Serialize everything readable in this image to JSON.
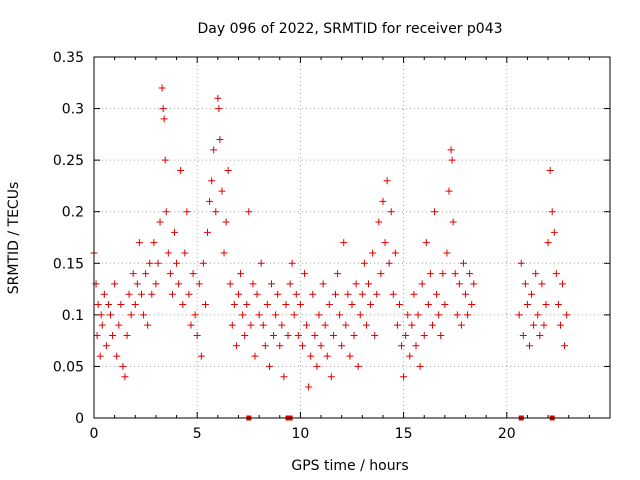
{
  "chart_data": {
    "type": "scatter",
    "title": "Day 096 of 2022, SRMTID for receiver p043",
    "xlabel": "GPS time / hours",
    "ylabel": "SRMTID / TECUs",
    "xlim": [
      0,
      25
    ],
    "ylim": [
      0,
      0.35
    ],
    "grid": true,
    "xticks": [
      0,
      5,
      10,
      15,
      20
    ],
    "xtick_labels": [
      "0",
      "5",
      "10",
      "15",
      "20"
    ],
    "yticks": [
      0,
      0.05,
      0.1,
      0.15,
      0.2,
      0.25,
      0.3,
      0.35
    ],
    "ytick_labels": [
      "0",
      "0.05",
      "0.1",
      "0.15",
      "0.2",
      "0.25",
      "0.3",
      "0.35"
    ],
    "marker": "+",
    "color": "#e00000",
    "series": [
      {
        "name": "SRMTID",
        "points": [
          [
            0.0,
            0.16
          ],
          [
            0.1,
            0.13
          ],
          [
            0.15,
            0.08
          ],
          [
            0.2,
            0.11
          ],
          [
            0.3,
            0.06
          ],
          [
            0.35,
            0.1
          ],
          [
            0.4,
            0.09
          ],
          [
            0.5,
            0.12
          ],
          [
            0.6,
            0.07
          ],
          [
            0.7,
            0.11
          ],
          [
            0.8,
            0.1
          ],
          [
            0.9,
            0.08
          ],
          [
            1.0,
            0.13
          ],
          [
            1.1,
            0.06
          ],
          [
            1.2,
            0.09
          ],
          [
            1.3,
            0.11
          ],
          [
            1.4,
            0.05
          ],
          [
            1.5,
            0.04
          ],
          [
            1.6,
            0.08
          ],
          [
            1.7,
            0.12
          ],
          [
            1.8,
            0.1
          ],
          [
            1.9,
            0.14
          ],
          [
            2.0,
            0.11
          ],
          [
            2.1,
            0.13
          ],
          [
            2.2,
            0.17
          ],
          [
            2.3,
            0.12
          ],
          [
            2.4,
            0.1
          ],
          [
            2.5,
            0.14
          ],
          [
            2.6,
            0.09
          ],
          [
            2.7,
            0.15
          ],
          [
            2.8,
            0.12
          ],
          [
            2.9,
            0.17
          ],
          [
            3.0,
            0.13
          ],
          [
            3.1,
            0.15
          ],
          [
            3.2,
            0.19
          ],
          [
            3.3,
            0.32
          ],
          [
            3.35,
            0.3
          ],
          [
            3.4,
            0.29
          ],
          [
            3.45,
            0.25
          ],
          [
            3.5,
            0.2
          ],
          [
            3.6,
            0.16
          ],
          [
            3.7,
            0.14
          ],
          [
            3.8,
            0.12
          ],
          [
            3.9,
            0.18
          ],
          [
            4.0,
            0.15
          ],
          [
            4.1,
            0.13
          ],
          [
            4.2,
            0.24
          ],
          [
            4.3,
            0.11
          ],
          [
            4.4,
            0.16
          ],
          [
            4.5,
            0.2
          ],
          [
            4.6,
            0.12
          ],
          [
            4.7,
            0.09
          ],
          [
            4.8,
            0.14
          ],
          [
            4.9,
            0.1
          ],
          [
            5.0,
            0.08
          ],
          [
            5.1,
            0.13
          ],
          [
            5.2,
            0.06
          ],
          [
            5.3,
            0.15
          ],
          [
            5.4,
            0.11
          ],
          [
            5.5,
            0.18
          ],
          [
            5.6,
            0.21
          ],
          [
            5.7,
            0.23
          ],
          [
            5.8,
            0.26
          ],
          [
            5.9,
            0.2
          ],
          [
            6.0,
            0.31
          ],
          [
            6.05,
            0.3
          ],
          [
            6.1,
            0.27
          ],
          [
            6.2,
            0.22
          ],
          [
            6.3,
            0.16
          ],
          [
            6.4,
            0.19
          ],
          [
            6.5,
            0.24
          ],
          [
            6.6,
            0.13
          ],
          [
            6.7,
            0.09
          ],
          [
            6.8,
            0.11
          ],
          [
            6.9,
            0.07
          ],
          [
            7.0,
            0.12
          ],
          [
            7.1,
            0.14
          ],
          [
            7.2,
            0.1
          ],
          [
            7.3,
            0.08
          ],
          [
            7.4,
            0.11
          ],
          [
            7.5,
            0.2
          ],
          [
            7.6,
            0.09
          ],
          [
            7.7,
            0.13
          ],
          [
            7.8,
            0.06
          ],
          [
            7.9,
            0.12
          ],
          [
            8.0,
            0.1
          ],
          [
            8.1,
            0.15
          ],
          [
            8.2,
            0.09
          ],
          [
            8.3,
            0.07
          ],
          [
            8.4,
            0.11
          ],
          [
            8.5,
            0.05
          ],
          [
            8.6,
            0.13
          ],
          [
            8.7,
            0.08
          ],
          [
            8.8,
            0.1
          ],
          [
            8.9,
            0.12
          ],
          [
            9.0,
            0.07
          ],
          [
            9.1,
            0.09
          ],
          [
            9.2,
            0.04
          ],
          [
            9.3,
            0.11
          ],
          [
            9.4,
            0.08
          ],
          [
            9.5,
            0.13
          ],
          [
            9.6,
            0.15
          ],
          [
            9.7,
            0.1
          ],
          [
            9.8,
            0.12
          ],
          [
            9.9,
            0.08
          ],
          [
            10.0,
            0.11
          ],
          [
            10.1,
            0.07
          ],
          [
            10.2,
            0.14
          ],
          [
            10.3,
            0.09
          ],
          [
            10.4,
            0.03
          ],
          [
            10.5,
            0.06
          ],
          [
            10.6,
            0.12
          ],
          [
            10.7,
            0.08
          ],
          [
            10.8,
            0.05
          ],
          [
            10.9,
            0.1
          ],
          [
            11.0,
            0.07
          ],
          [
            11.1,
            0.13
          ],
          [
            11.2,
            0.09
          ],
          [
            11.3,
            0.06
          ],
          [
            11.4,
            0.11
          ],
          [
            11.5,
            0.04
          ],
          [
            11.6,
            0.08
          ],
          [
            11.7,
            0.12
          ],
          [
            11.8,
            0.14
          ],
          [
            11.9,
            0.1
          ],
          [
            12.0,
            0.07
          ],
          [
            12.1,
            0.17
          ],
          [
            12.2,
            0.09
          ],
          [
            12.3,
            0.12
          ],
          [
            12.4,
            0.06
          ],
          [
            12.5,
            0.11
          ],
          [
            12.6,
            0.08
          ],
          [
            12.7,
            0.13
          ],
          [
            12.8,
            0.05
          ],
          [
            12.9,
            0.1
          ],
          [
            13.0,
            0.12
          ],
          [
            13.1,
            0.15
          ],
          [
            13.2,
            0.09
          ],
          [
            13.3,
            0.13
          ],
          [
            13.4,
            0.11
          ],
          [
            13.5,
            0.16
          ],
          [
            13.6,
            0.08
          ],
          [
            13.7,
            0.12
          ],
          [
            13.8,
            0.19
          ],
          [
            13.9,
            0.14
          ],
          [
            14.0,
            0.21
          ],
          [
            14.1,
            0.17
          ],
          [
            14.2,
            0.23
          ],
          [
            14.3,
            0.15
          ],
          [
            14.4,
            0.2
          ],
          [
            14.5,
            0.12
          ],
          [
            14.6,
            0.16
          ],
          [
            14.7,
            0.09
          ],
          [
            14.8,
            0.11
          ],
          [
            14.9,
            0.07
          ],
          [
            15.0,
            0.04
          ],
          [
            15.1,
            0.08
          ],
          [
            15.2,
            0.1
          ],
          [
            15.3,
            0.06
          ],
          [
            15.4,
            0.09
          ],
          [
            15.5,
            0.12
          ],
          [
            15.6,
            0.07
          ],
          [
            15.7,
            0.1
          ],
          [
            15.8,
            0.05
          ],
          [
            15.9,
            0.13
          ],
          [
            16.0,
            0.08
          ],
          [
            16.1,
            0.17
          ],
          [
            16.2,
            0.11
          ],
          [
            16.3,
            0.14
          ],
          [
            16.4,
            0.09
          ],
          [
            16.5,
            0.2
          ],
          [
            16.6,
            0.12
          ],
          [
            16.7,
            0.1
          ],
          [
            16.8,
            0.08
          ],
          [
            16.9,
            0.14
          ],
          [
            17.0,
            0.11
          ],
          [
            17.1,
            0.16
          ],
          [
            17.2,
            0.22
          ],
          [
            17.3,
            0.26
          ],
          [
            17.35,
            0.25
          ],
          [
            17.4,
            0.19
          ],
          [
            17.5,
            0.14
          ],
          [
            17.6,
            0.1
          ],
          [
            17.7,
            0.13
          ],
          [
            17.8,
            0.09
          ],
          [
            17.9,
            0.15
          ],
          [
            18.0,
            0.12
          ],
          [
            18.1,
            0.1
          ],
          [
            18.2,
            0.14
          ],
          [
            18.3,
            0.11
          ],
          [
            18.4,
            0.13
          ],
          [
            20.6,
            0.1
          ],
          [
            20.7,
            0.15
          ],
          [
            20.8,
            0.08
          ],
          [
            20.9,
            0.13
          ],
          [
            21.0,
            0.11
          ],
          [
            21.1,
            0.07
          ],
          [
            21.2,
            0.12
          ],
          [
            21.3,
            0.09
          ],
          [
            21.4,
            0.14
          ],
          [
            21.5,
            0.1
          ],
          [
            21.6,
            0.08
          ],
          [
            21.7,
            0.13
          ],
          [
            21.8,
            0.09
          ],
          [
            21.9,
            0.11
          ],
          [
            22.0,
            0.17
          ],
          [
            22.1,
            0.24
          ],
          [
            22.2,
            0.2
          ],
          [
            22.3,
            0.18
          ],
          [
            22.4,
            0.14
          ],
          [
            22.5,
            0.11
          ],
          [
            22.6,
            0.09
          ],
          [
            22.7,
            0.13
          ],
          [
            22.8,
            0.07
          ],
          [
            22.9,
            0.1
          ]
        ]
      }
    ],
    "baseline_marks": [
      7.5,
      9.4,
      9.5,
      20.7,
      22.2
    ]
  }
}
